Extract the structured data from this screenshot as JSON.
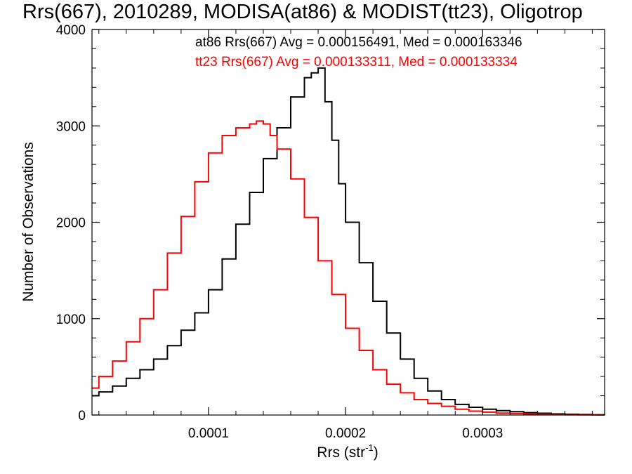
{
  "chart_data": {
    "type": "line",
    "title": "Rrs(667), 2010289, MODISA(at86) & MODIST(tt23), Oligotrop",
    "xlabel_main": "Rrs (str",
    "xlabel_sup": "-1",
    "xlabel_close": ")",
    "ylabel": "Number of Observations",
    "xlim": [
      1.5e-05,
      0.000389
    ],
    "ylim": [
      0,
      4000
    ],
    "x_ticks": [
      {
        "value": 0.0001,
        "label": "0.0001"
      },
      {
        "value": 0.0002,
        "label": "0.0002"
      },
      {
        "value": 0.0003,
        "label": "0.0003"
      }
    ],
    "y_ticks": [
      {
        "value": 0,
        "label": "0"
      },
      {
        "value": 1000,
        "label": "1000"
      },
      {
        "value": 2000,
        "label": "2000"
      },
      {
        "value": 3000,
        "label": "3000"
      },
      {
        "value": 4000,
        "label": "4000"
      }
    ],
    "annotations": [
      {
        "text": "at86 Rrs(667) Avg = 0.000156491, Med = 0.000163346",
        "color": "#000000"
      },
      {
        "text": "tt23 Rrs(667) Avg = 0.000133311, Med = 0.000133334",
        "color": "#ff0000"
      }
    ],
    "series": [
      {
        "color": "#000000",
        "x": [
          1.5e-05,
          2e-05,
          3e-05,
          4e-05,
          5e-05,
          6e-05,
          7e-05,
          8e-05,
          9e-05,
          0.0001,
          0.00011,
          0.00012,
          0.00013,
          0.00014,
          0.00015,
          0.00016,
          0.00017,
          0.000175,
          0.00018,
          0.000185,
          0.00019,
          0.000195,
          0.0002,
          0.00021,
          0.00022,
          0.00023,
          0.00024,
          0.00025,
          0.00026,
          0.00027,
          0.00028,
          0.00029,
          0.0003,
          0.00031,
          0.00032,
          0.00033,
          0.00034,
          0.00035,
          0.00036,
          0.00037,
          0.00038,
          0.000389
        ],
        "values": [
          200,
          240,
          300,
          380,
          470,
          580,
          720,
          880,
          1060,
          1300,
          1620,
          1980,
          2310,
          2660,
          2980,
          3300,
          3500,
          3550,
          3600,
          3250,
          2850,
          2400,
          2000,
          1580,
          1180,
          850,
          580,
          380,
          250,
          160,
          110,
          80,
          60,
          45,
          35,
          25,
          18,
          12,
          8,
          5,
          3,
          2
        ]
      },
      {
        "color": "#ff0000",
        "x": [
          1.5e-05,
          2e-05,
          3e-05,
          4e-05,
          5e-05,
          6e-05,
          7e-05,
          8e-05,
          9e-05,
          0.0001,
          0.00011,
          0.00012,
          0.00013,
          0.000135,
          0.00014,
          0.000145,
          0.00015,
          0.00016,
          0.00017,
          0.00018,
          0.00019,
          0.0002,
          0.00021,
          0.00022,
          0.00023,
          0.00024,
          0.00025,
          0.00026,
          0.00027,
          0.00028,
          0.00029,
          0.0003,
          0.00031,
          0.00032,
          0.00033,
          0.00034,
          0.00035,
          0.00036,
          0.00037,
          0.00038,
          0.000389
        ],
        "values": [
          280,
          400,
          560,
          760,
          1000,
          1300,
          1680,
          2060,
          2420,
          2720,
          2900,
          2980,
          3020,
          3050,
          3020,
          2900,
          2760,
          2450,
          2050,
          1600,
          1250,
          900,
          670,
          470,
          320,
          230,
          160,
          120,
          90,
          60,
          40,
          30,
          20,
          15,
          10,
          8,
          5,
          3,
          2,
          1,
          1
        ]
      }
    ]
  }
}
